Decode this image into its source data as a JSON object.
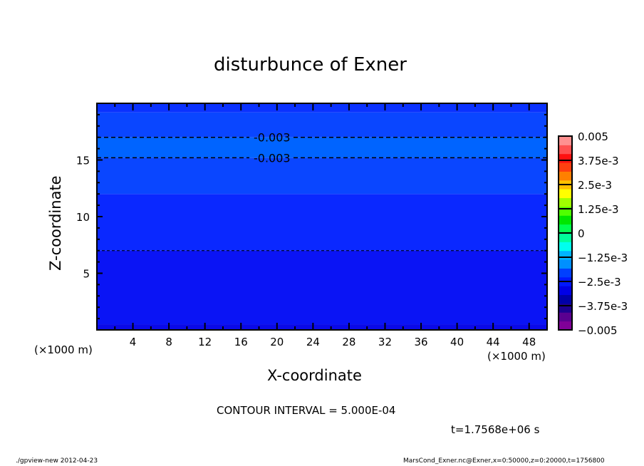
{
  "chart_data": {
    "type": "heatmap",
    "title": "disturbunce of Exner",
    "xlabel": "X-coordinate",
    "ylabel": "Z-coordinate",
    "x_unit": "(×1000 m)",
    "y_unit": "(×1000 m)",
    "xlim": [
      0,
      50
    ],
    "ylim": [
      0,
      20
    ],
    "x_ticks": [
      4,
      8,
      12,
      16,
      20,
      24,
      28,
      32,
      36,
      40,
      44,
      48
    ],
    "y_ticks": [
      5,
      10,
      15
    ],
    "bands": [
      {
        "z": [
          0,
          0.5
        ],
        "color": "#0a0ae8"
      },
      {
        "z": [
          0.5,
          7.0
        ],
        "color": "#0a14f5"
      },
      {
        "z": [
          7.0,
          12.0
        ],
        "color": "#0a28ff"
      },
      {
        "z": [
          12.0,
          15.2
        ],
        "color": "#0a46ff"
      },
      {
        "z": [
          15.2,
          17.0
        ],
        "color": "#0064ff"
      },
      {
        "z": [
          17.0,
          19.2
        ],
        "color": "#0a46ff"
      },
      {
        "z": [
          19.2,
          20
        ],
        "color": "#0a32ff"
      }
    ],
    "contours": [
      {
        "z": 17.0,
        "label": "-0.003"
      },
      {
        "z": 15.2,
        "label": "-0.003"
      },
      {
        "z": 7.0,
        "label": ""
      }
    ],
    "colorbar": {
      "range": [
        -0.005,
        0.005
      ],
      "tick_labels": [
        "0.005",
        "3.75e-3",
        "2.5e-3",
        "1.25e-3",
        "0",
        "−1.25e-3",
        "−2.5e-3",
        "−3.75e-3",
        "−0.005"
      ],
      "colors": [
        "#800098",
        "#5a0090",
        "#1e0090",
        "#0000a8",
        "#0000e6",
        "#0018ff",
        "#0040ff",
        "#0090ff",
        "#00b4ff",
        "#00ffee",
        "#00ff9a",
        "#00ff50",
        "#00e600",
        "#50ff00",
        "#a0ff00",
        "#ffff00",
        "#ffc000",
        "#ff8000",
        "#ff4010",
        "#ff1010",
        "#ff5050",
        "#ff9090"
      ]
    }
  },
  "annotations": {
    "contour_interval": "CONTOUR INTERVAL = 5.000E-04",
    "time": "t=1.7568e+06 s",
    "footer_left": "./gpview-new  2012-04-23",
    "footer_right": "MarsCond_Exner.nc@Exner,x=0:50000,z=0:20000,t=1756800"
  }
}
